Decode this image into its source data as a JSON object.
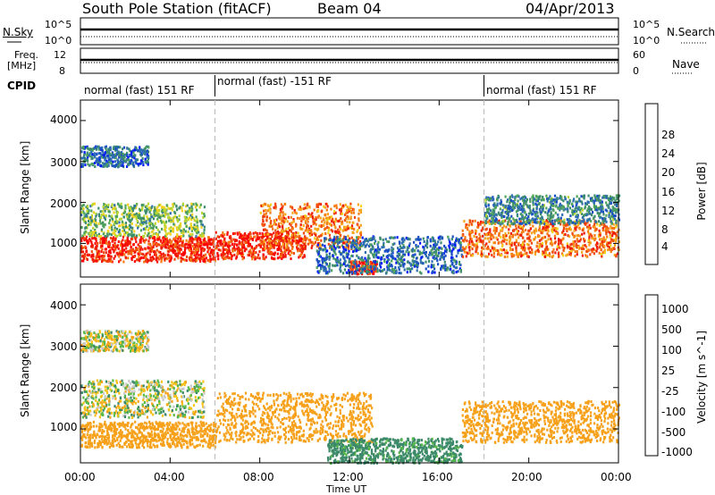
{
  "header": {
    "station": "South Pole Station (fitACF)",
    "beam": "Beam 04",
    "date": "04/Apr/2013"
  },
  "panels": {
    "nsky": {
      "label": "N.Sky",
      "tick_top": "10^5",
      "tick_bottom": "10^0"
    },
    "nsearch": {
      "label": "N.Search",
      "tick_top": "10^5",
      "tick_bottom": "10^0"
    },
    "freq": {
      "label_line1": "Freq.",
      "label_line2": "[MHz]",
      "tick_top": "12",
      "tick_bottom": "8"
    },
    "nave": {
      "label": "Nave",
      "tick_top": "60",
      "tick_bottom": "0"
    },
    "cpid": {
      "label": "CPID",
      "segments": [
        {
          "name": "normal (fast) 151 RF",
          "start_hour": 0,
          "end_hour": 6
        },
        {
          "name": "normal (fast) -151 RF",
          "start_hour": 6,
          "end_hour": 18
        },
        {
          "name": "normal (fast) 151 RF",
          "start_hour": 18,
          "end_hour": 24
        }
      ]
    }
  },
  "chart_data": [
    {
      "type": "heatmap",
      "ylabel": "Slant Range [km]",
      "xlabel": "",
      "x_ticks": [
        "00:00",
        "04:00",
        "08:00",
        "12:00",
        "16:00",
        "20:00",
        "00:00"
      ],
      "xlim_hours": [
        0,
        24
      ],
      "y_ticks": [
        1000,
        2000,
        3000,
        4000
      ],
      "ylim": [
        180,
        4500
      ],
      "colorbar": {
        "label": "Power [dB]",
        "ticks": [
          4,
          8,
          12,
          16,
          20,
          24,
          28
        ],
        "range": [
          0,
          30
        ],
        "colors": [
          "#0016ff",
          "#1a4fc4",
          "#2f6fb0",
          "#3e8c6e",
          "#4fa35a",
          "#b8d530",
          "#f2d21f",
          "#f7a41a",
          "#f57a14",
          "#f04a0c",
          "#ee1a07",
          "#ff0000"
        ]
      },
      "echo_bands": [
        {
          "start_hour": 0.0,
          "end_hour": 6.0,
          "range_low": 580,
          "range_high": 1200,
          "level": 26
        },
        {
          "start_hour": 0.0,
          "end_hour": 5.5,
          "range_low": 1200,
          "range_high": 2000,
          "level": 12
        },
        {
          "start_hour": 0.0,
          "end_hour": 3.0,
          "range_low": 2900,
          "range_high": 3400,
          "level": 6
        },
        {
          "start_hour": 6.0,
          "end_hour": 10.0,
          "range_low": 650,
          "range_high": 1300,
          "level": 26
        },
        {
          "start_hour": 8.0,
          "end_hour": 12.5,
          "range_low": 900,
          "range_high": 2000,
          "level": 22
        },
        {
          "start_hour": 12.0,
          "end_hour": 13.2,
          "range_low": 280,
          "range_high": 600,
          "level": 26
        },
        {
          "start_hour": 10.5,
          "end_hour": 17.0,
          "range_low": 300,
          "range_high": 1200,
          "level": 6
        },
        {
          "start_hour": 17.0,
          "end_hour": 24.0,
          "range_low": 700,
          "range_high": 1600,
          "level": 22
        },
        {
          "start_hour": 18.0,
          "end_hour": 24.0,
          "range_low": 1500,
          "range_high": 2200,
          "level": 8
        }
      ]
    },
    {
      "type": "heatmap",
      "ylabel": "Slant Range [km]",
      "xlabel": "Time UT",
      "x_ticks": [
        "00:00",
        "04:00",
        "08:00",
        "12:00",
        "16:00",
        "20:00",
        "00:00"
      ],
      "xlim_hours": [
        0,
        24
      ],
      "y_ticks": [
        1000,
        2000,
        3000,
        4000
      ],
      "ylim": [
        180,
        4500
      ],
      "colorbar": {
        "label": "Velocity [m s^-1]",
        "ticks": [
          1000,
          500,
          100,
          25,
          -25,
          -100,
          -500,
          -1000
        ],
        "colors": [
          "#1d3fbf",
          "#2f63b8",
          "#3c8a6a",
          "#58b848",
          "#c8c8c8",
          "#f5c21a",
          "#f7a11a",
          "#f0730e",
          "#ee0e0e"
        ]
      },
      "echo_bands": [
        {
          "start_hour": 0.0,
          "end_hour": 6.0,
          "range_low": 580,
          "range_high": 1200,
          "level": -300
        },
        {
          "start_hour": 0.0,
          "end_hour": 5.5,
          "range_low": 1300,
          "range_high": 2200,
          "level": 0
        },
        {
          "start_hour": 0.0,
          "end_hour": 3.0,
          "range_low": 2900,
          "range_high": 3400,
          "level": 0
        },
        {
          "start_hour": 6.0,
          "end_hour": 13.0,
          "range_low": 700,
          "range_high": 1900,
          "level": -300
        },
        {
          "start_hour": 11.0,
          "end_hour": 17.0,
          "range_low": 200,
          "range_high": 800,
          "level": 200
        },
        {
          "start_hour": 17.0,
          "end_hour": 24.0,
          "range_low": 700,
          "range_high": 1700,
          "level": -300
        }
      ]
    }
  ]
}
